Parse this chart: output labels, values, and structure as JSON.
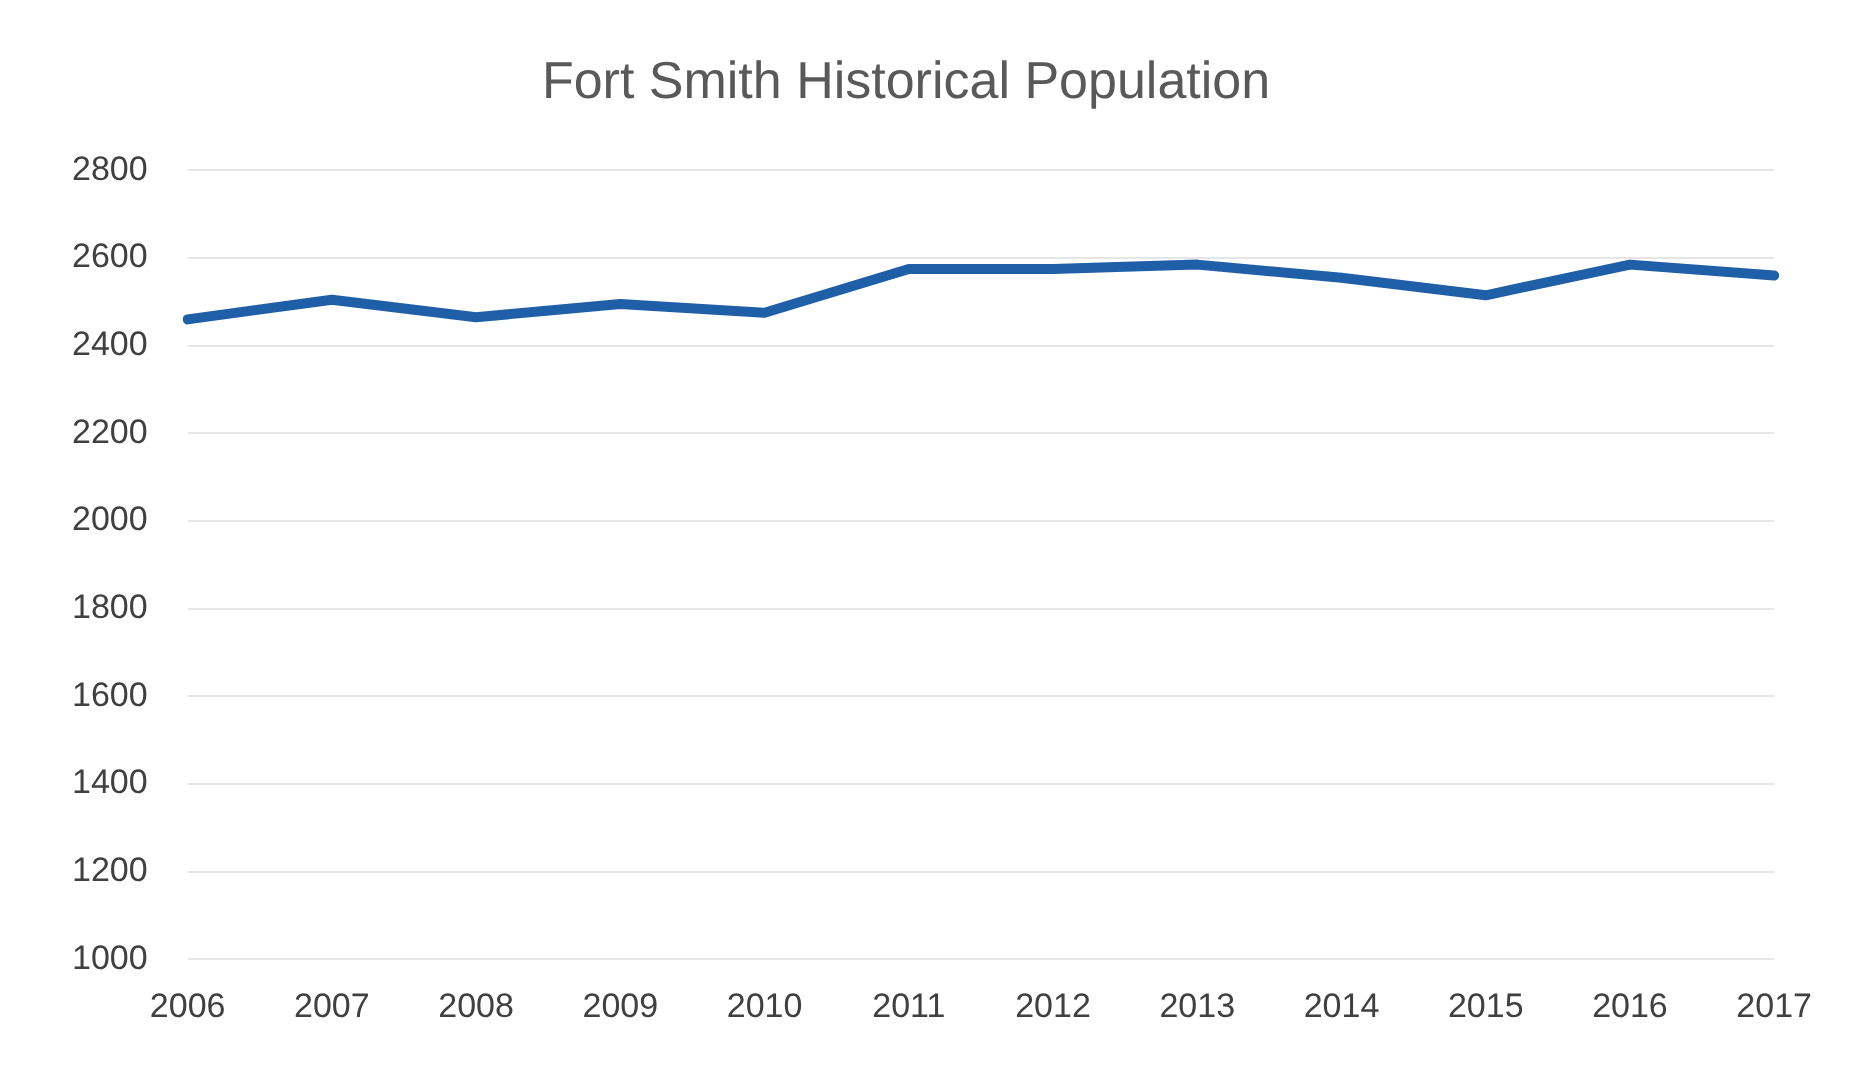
{
  "chart_data": {
    "type": "line",
    "title": "Fort Smith Historical Population",
    "categories": [
      "2006",
      "2007",
      "2008",
      "2009",
      "2010",
      "2011",
      "2012",
      "2013",
      "2014",
      "2015",
      "2016",
      "2017"
    ],
    "series": [
      {
        "color": "#1f5fa8",
        "values": [
          2460,
          2505,
          2465,
          2495,
          2475,
          2575,
          2575,
          2585,
          2555,
          2515,
          2585,
          2560
        ]
      }
    ],
    "ylim": [
      1000,
      2800
    ],
    "yticks": [
      1000,
      1200,
      1400,
      1600,
      1800,
      2000,
      2200,
      2400,
      2600,
      2800
    ],
    "grid": "y",
    "legend": false,
    "marker": "none",
    "line_style": "solid"
  }
}
